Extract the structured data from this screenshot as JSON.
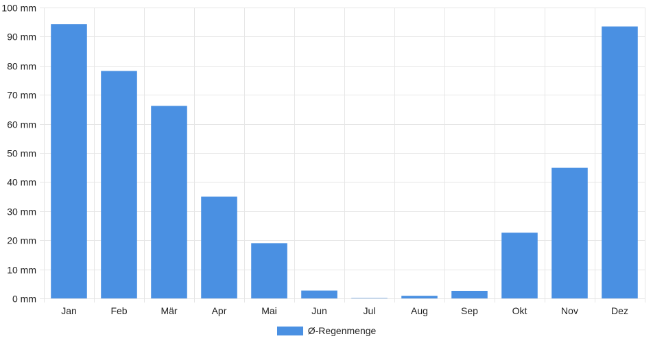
{
  "chart_data": {
    "type": "bar",
    "categories": [
      "Jan",
      "Feb",
      "Mär",
      "Apr",
      "Mai",
      "Jun",
      "Jul",
      "Aug",
      "Sep",
      "Okt",
      "Nov",
      "Dez"
    ],
    "series": [
      {
        "name": "Ø-Regenmenge",
        "values": [
          94.3,
          78.2,
          66.2,
          35.0,
          19.0,
          2.7,
          0.0,
          0.9,
          2.6,
          22.6,
          44.9,
          93.5
        ],
        "color": "#4a90e2"
      }
    ],
    "ylim": [
      0,
      100
    ],
    "yticks": [
      0,
      10,
      20,
      30,
      40,
      50,
      60,
      70,
      80,
      90,
      100
    ],
    "y_tick_labels": [
      "0 mm",
      "10 mm",
      "20 mm",
      "30 mm",
      "40 mm",
      "50 mm",
      "60 mm",
      "70 mm",
      "80 mm",
      "90 mm",
      "100 mm"
    ],
    "grid": true,
    "legend_position": "bottom-center",
    "grid_color": "#e6e6e6"
  }
}
